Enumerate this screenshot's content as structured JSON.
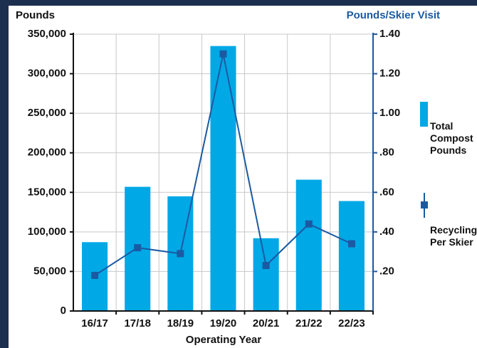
{
  "chart_data": {
    "type": "bar_line",
    "ylabel": "Pounds",
    "y2label": "Pounds/Skier Visit",
    "xlabel": "Operating Year",
    "categories": [
      "16/17",
      "17/18",
      "18/19",
      "19/20",
      "20/21",
      "21/22",
      "22/23"
    ],
    "series": [
      {
        "name": "Total Compost Pounds",
        "type": "bar",
        "color": "#00a8e6",
        "values": [
          87000,
          157000,
          145000,
          335000,
          92000,
          166000,
          139000
        ]
      },
      {
        "name": "Recycling Per Skier",
        "type": "line",
        "axis": "y2",
        "color": "#1b5aa3",
        "values": [
          0.18,
          0.32,
          0.29,
          1.3,
          0.23,
          0.44,
          0.34
        ]
      }
    ],
    "ylim": [
      0,
      350000
    ],
    "yticks": [
      0,
      {
        "value": 50000,
        "label": "50,000"
      },
      {
        "value": 100000,
        "label": "100,000"
      },
      {
        "value": 150000,
        "label": "150,000"
      },
      {
        "value": 200000,
        "label": "200,000"
      },
      {
        "value": 250000,
        "label": "250,000"
      },
      {
        "value": 300000,
        "label": "300,000"
      },
      {
        "value": 350000,
        "label": "350,000"
      }
    ],
    "y2lim": [
      0,
      1.4
    ],
    "y2ticks": [
      {
        "value": 0.2,
        "label": ".20"
      },
      {
        "value": 0.4,
        "label": ".40"
      },
      {
        "value": 0.6,
        "label": ".60"
      },
      {
        "value": 0.8,
        "label": ".80"
      },
      {
        "value": 1.0,
        "label": "1.00"
      },
      {
        "value": 1.2,
        "label": "1.20"
      },
      {
        "value": 1.4,
        "label": "1.40"
      }
    ],
    "grid": true
  }
}
